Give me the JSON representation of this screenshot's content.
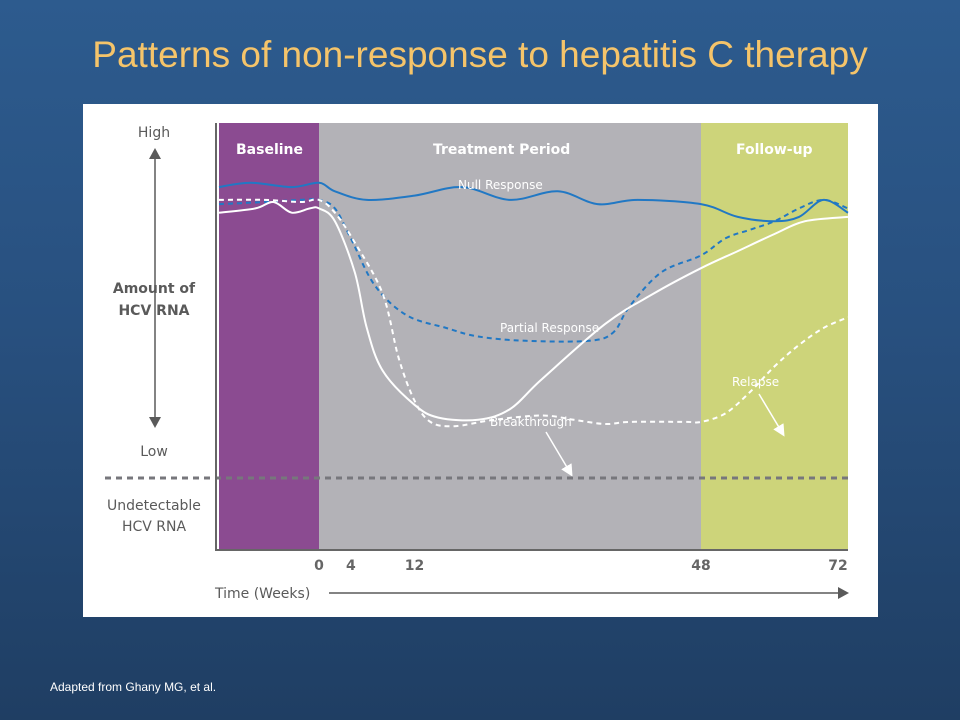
{
  "slide": {
    "title": "Patterns of non-response to hepatitis C therapy",
    "footnote": "Adapted from Ghany MG, et al."
  },
  "colors": {
    "baseline": "#8b4b91",
    "treatment": "#b3b2b7",
    "followup": "#cdd47a",
    "null_response": "#2178c4",
    "partial_response": "#2178c4",
    "breakthrough": "#ffffff",
    "relapse": "#ffffff",
    "undetectable_line": "#77777c",
    "title": "#f5c46a"
  },
  "chart_data": {
    "type": "line",
    "xlabel": "Time (Weeks)",
    "ylabel": "Amount of HCV RNA",
    "y_axis_labels": {
      "high": "High",
      "ylabel_line1": "Amount of",
      "ylabel_line2": "HCV RNA",
      "low": "Low",
      "undetectable_line1": "Undetectable",
      "undetectable_line2": "HCV RNA"
    },
    "x_ticks": [
      {
        "value": 0,
        "label": "0"
      },
      {
        "value": 4,
        "label": "4"
      },
      {
        "value": 12,
        "label": "12"
      },
      {
        "value": 48,
        "label": "48"
      },
      {
        "value": 72,
        "label": "72"
      }
    ],
    "xlim": [
      -11,
      72
    ],
    "ylim": [
      0,
      100
    ],
    "undetectable_level": 35,
    "regions": [
      {
        "name": "Baseline",
        "x_start": -11,
        "x_end": 0,
        "color": "#8b4b91"
      },
      {
        "name": "Treatment Period",
        "x_start": 0,
        "x_end": 48,
        "color": "#b3b2b7"
      },
      {
        "name": "Follow-up",
        "x_start": 48,
        "x_end": 72,
        "color": "#cdd47a"
      }
    ],
    "series": [
      {
        "name": "Null Response",
        "style": "solid",
        "color": "#2178c4",
        "points": [
          [
            -11,
            85
          ],
          [
            -7.5,
            86
          ],
          [
            -3,
            85
          ],
          [
            0,
            86
          ],
          [
            2,
            84
          ],
          [
            6,
            82
          ],
          [
            12,
            83
          ],
          [
            18,
            85
          ],
          [
            24,
            82
          ],
          [
            30,
            84
          ],
          [
            35,
            81
          ],
          [
            40,
            82
          ],
          [
            48,
            81
          ],
          [
            54,
            78
          ],
          [
            60,
            77
          ],
          [
            64,
            78
          ],
          [
            68,
            82
          ],
          [
            72,
            79
          ]
        ]
      },
      {
        "name": "Partial Response",
        "style": "dashed",
        "color": "#2178c4",
        "points": [
          [
            -11,
            81
          ],
          [
            -6,
            81.5
          ],
          [
            -2,
            82
          ],
          [
            0,
            82
          ],
          [
            2,
            80
          ],
          [
            4,
            73
          ],
          [
            7,
            62
          ],
          [
            11,
            55
          ],
          [
            16,
            52
          ],
          [
            20,
            50
          ],
          [
            26,
            49
          ],
          [
            34,
            49
          ],
          [
            37,
            51
          ],
          [
            39,
            57
          ],
          [
            43,
            65
          ],
          [
            48,
            69
          ],
          [
            52,
            73
          ],
          [
            56,
            75
          ],
          [
            60,
            77
          ],
          [
            64,
            80
          ],
          [
            68,
            82
          ],
          [
            72,
            80
          ]
        ]
      },
      {
        "name": "Breakthrough",
        "style": "solid",
        "color": "#ffffff",
        "points": [
          [
            -11,
            79
          ],
          [
            -7,
            80
          ],
          [
            -5,
            81.5
          ],
          [
            -3,
            79
          ],
          [
            -1,
            80
          ],
          [
            0,
            80
          ],
          [
            2,
            77
          ],
          [
            4.5,
            65
          ],
          [
            6,
            52
          ],
          [
            8,
            42
          ],
          [
            12,
            34
          ],
          [
            15,
            31
          ],
          [
            20,
            30.5
          ],
          [
            24,
            33
          ],
          [
            28,
            40
          ],
          [
            36,
            53
          ],
          [
            42,
            60
          ],
          [
            48,
            66
          ],
          [
            54,
            70
          ],
          [
            60,
            74
          ],
          [
            65,
            77
          ],
          [
            72,
            78
          ]
        ]
      },
      {
        "name": "Relapse",
        "style": "dashed",
        "color": "#ffffff",
        "points": [
          [
            -11,
            82
          ],
          [
            -6,
            82
          ],
          [
            -2,
            81.5
          ],
          [
            0,
            82
          ],
          [
            2,
            79
          ],
          [
            4.5,
            72
          ],
          [
            8,
            60
          ],
          [
            10,
            45
          ],
          [
            12,
            35
          ],
          [
            14,
            30
          ],
          [
            17,
            29
          ],
          [
            22,
            30.5
          ],
          [
            28,
            31.5
          ],
          [
            32,
            30.5
          ],
          [
            36,
            29.5
          ],
          [
            39,
            30
          ],
          [
            46,
            30
          ],
          [
            48,
            30
          ],
          [
            52,
            32
          ],
          [
            56,
            37
          ],
          [
            60,
            43
          ],
          [
            64,
            48
          ],
          [
            68,
            52
          ],
          [
            72,
            54.5
          ]
        ]
      }
    ],
    "curve_labels": {
      "null_response": "Null Response",
      "partial_response": "Partial Response",
      "breakthrough": "Breakthrough",
      "relapse": "Relapse"
    }
  }
}
